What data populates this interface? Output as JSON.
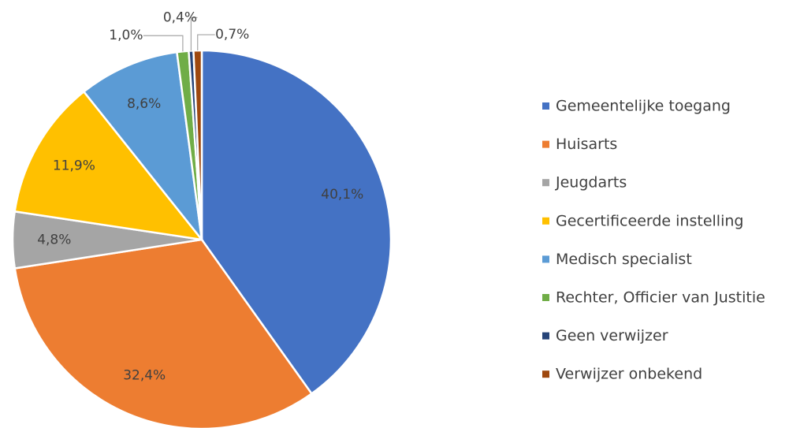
{
  "chart_data": {
    "type": "pie",
    "categories": [
      "Gemeentelijke toegang",
      "Huisarts",
      "Jeugdarts",
      "Gecertificeerde instelling",
      "Medisch specialist",
      "Rechter, Officier van Justitie",
      "Geen verwijzer",
      "Verwijzer onbekend"
    ],
    "values": [
      40.1,
      32.4,
      4.8,
      11.9,
      8.6,
      1.0,
      0.4,
      0.7
    ],
    "value_labels": [
      "40,1%",
      "32,4%",
      "4,8%",
      "11,9%",
      "8,6%",
      "1,0%",
      "0,4%",
      "0,7%"
    ],
    "colors": [
      "#4472c4",
      "#ed7d31",
      "#a5a5a5",
      "#ffc000",
      "#5b9bd5",
      "#70ad47",
      "#264478",
      "#9e480e"
    ],
    "legend": "right"
  }
}
